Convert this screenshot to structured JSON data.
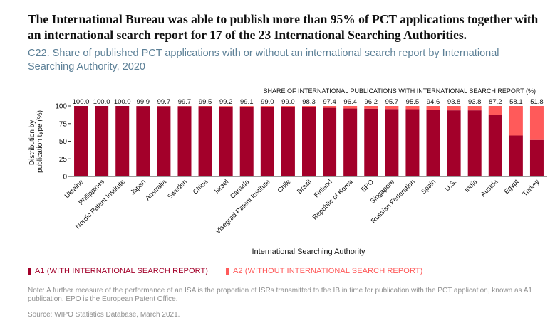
{
  "headline": "The International Bureau was able to publish more than 95% of PCT applications together with an international search report for 17 of the 23 International Searching Authorities.",
  "subtitle": "C22. Share of published PCT applications with or without an international search report by International Searching Authority, 2020",
  "colors": {
    "a1": "#a3002a",
    "a2": "#ff5a5a",
    "axis": "#333333",
    "text": "#111111"
  },
  "legend": {
    "a1_label": "A1 (WITH INTERNATIONAL SEARCH REPORT)",
    "a2_label": "A2 (WITHOUT INTERNATIONAL SEARCH REPORT)"
  },
  "note": "Note: A further measure of the performance of an ISA is the proportion of ISRs transmitted to the IB in time for publication with the PCT application, known as A1 publication. EPO is the European Patent Office.",
  "source": "Source: WIPO Statistics Database, March 2021.",
  "chart_data": {
    "type": "bar",
    "stacked": true,
    "top_label_title": "SHARE OF INTERNATIONAL PUBLICATIONS WITH INTERNATIONAL SEARCH REPORT (%)",
    "xlabel": "International Searching Authority",
    "ylabel": "Distribution by publication type (%)",
    "ylim": [
      0,
      100
    ],
    "yticks": [
      0,
      25,
      50,
      75,
      100
    ],
    "categories": [
      "Ukraine",
      "Philippines",
      "Nordic Patent Institute",
      "Japan",
      "Australia",
      "Sweden",
      "China",
      "Israel",
      "Canada",
      "Visegrad Patent Institute",
      "Chile",
      "Brazil",
      "Finland",
      "Republic of Korea",
      "EPO",
      "Singapore",
      "Russian Federation",
      "Spain",
      "U.S.",
      "India",
      "Austria",
      "Egypt",
      "Turkey"
    ],
    "top_labels": [
      "100.0",
      "100.0",
      "100.0",
      "99.9",
      "99.7",
      "99.7",
      "99.5",
      "99.2",
      "99.1",
      "99.0",
      "99.0",
      "98.3",
      "97.4",
      "96.4",
      "96.2",
      "95.7",
      "95.5",
      "94.6",
      "93.8",
      "93.8",
      "87.2",
      "58.1",
      "51.8"
    ],
    "series": [
      {
        "name": "A1 (WITH INTERNATIONAL SEARCH REPORT)",
        "values": [
          100.0,
          100.0,
          100.0,
          99.9,
          99.7,
          99.7,
          99.5,
          99.2,
          99.1,
          99.0,
          99.0,
          98.3,
          97.4,
          96.4,
          96.2,
          95.7,
          95.5,
          94.6,
          93.8,
          93.8,
          87.2,
          58.1,
          51.8
        ]
      },
      {
        "name": "A2 (WITHOUT INTERNATIONAL SEARCH REPORT)",
        "values": [
          0.0,
          0.0,
          0.0,
          0.1,
          0.3,
          0.3,
          0.5,
          0.8,
          0.9,
          1.0,
          1.0,
          1.7,
          2.6,
          3.6,
          3.8,
          4.3,
          4.5,
          5.4,
          6.2,
          6.2,
          12.8,
          41.9,
          48.2
        ]
      }
    ]
  }
}
